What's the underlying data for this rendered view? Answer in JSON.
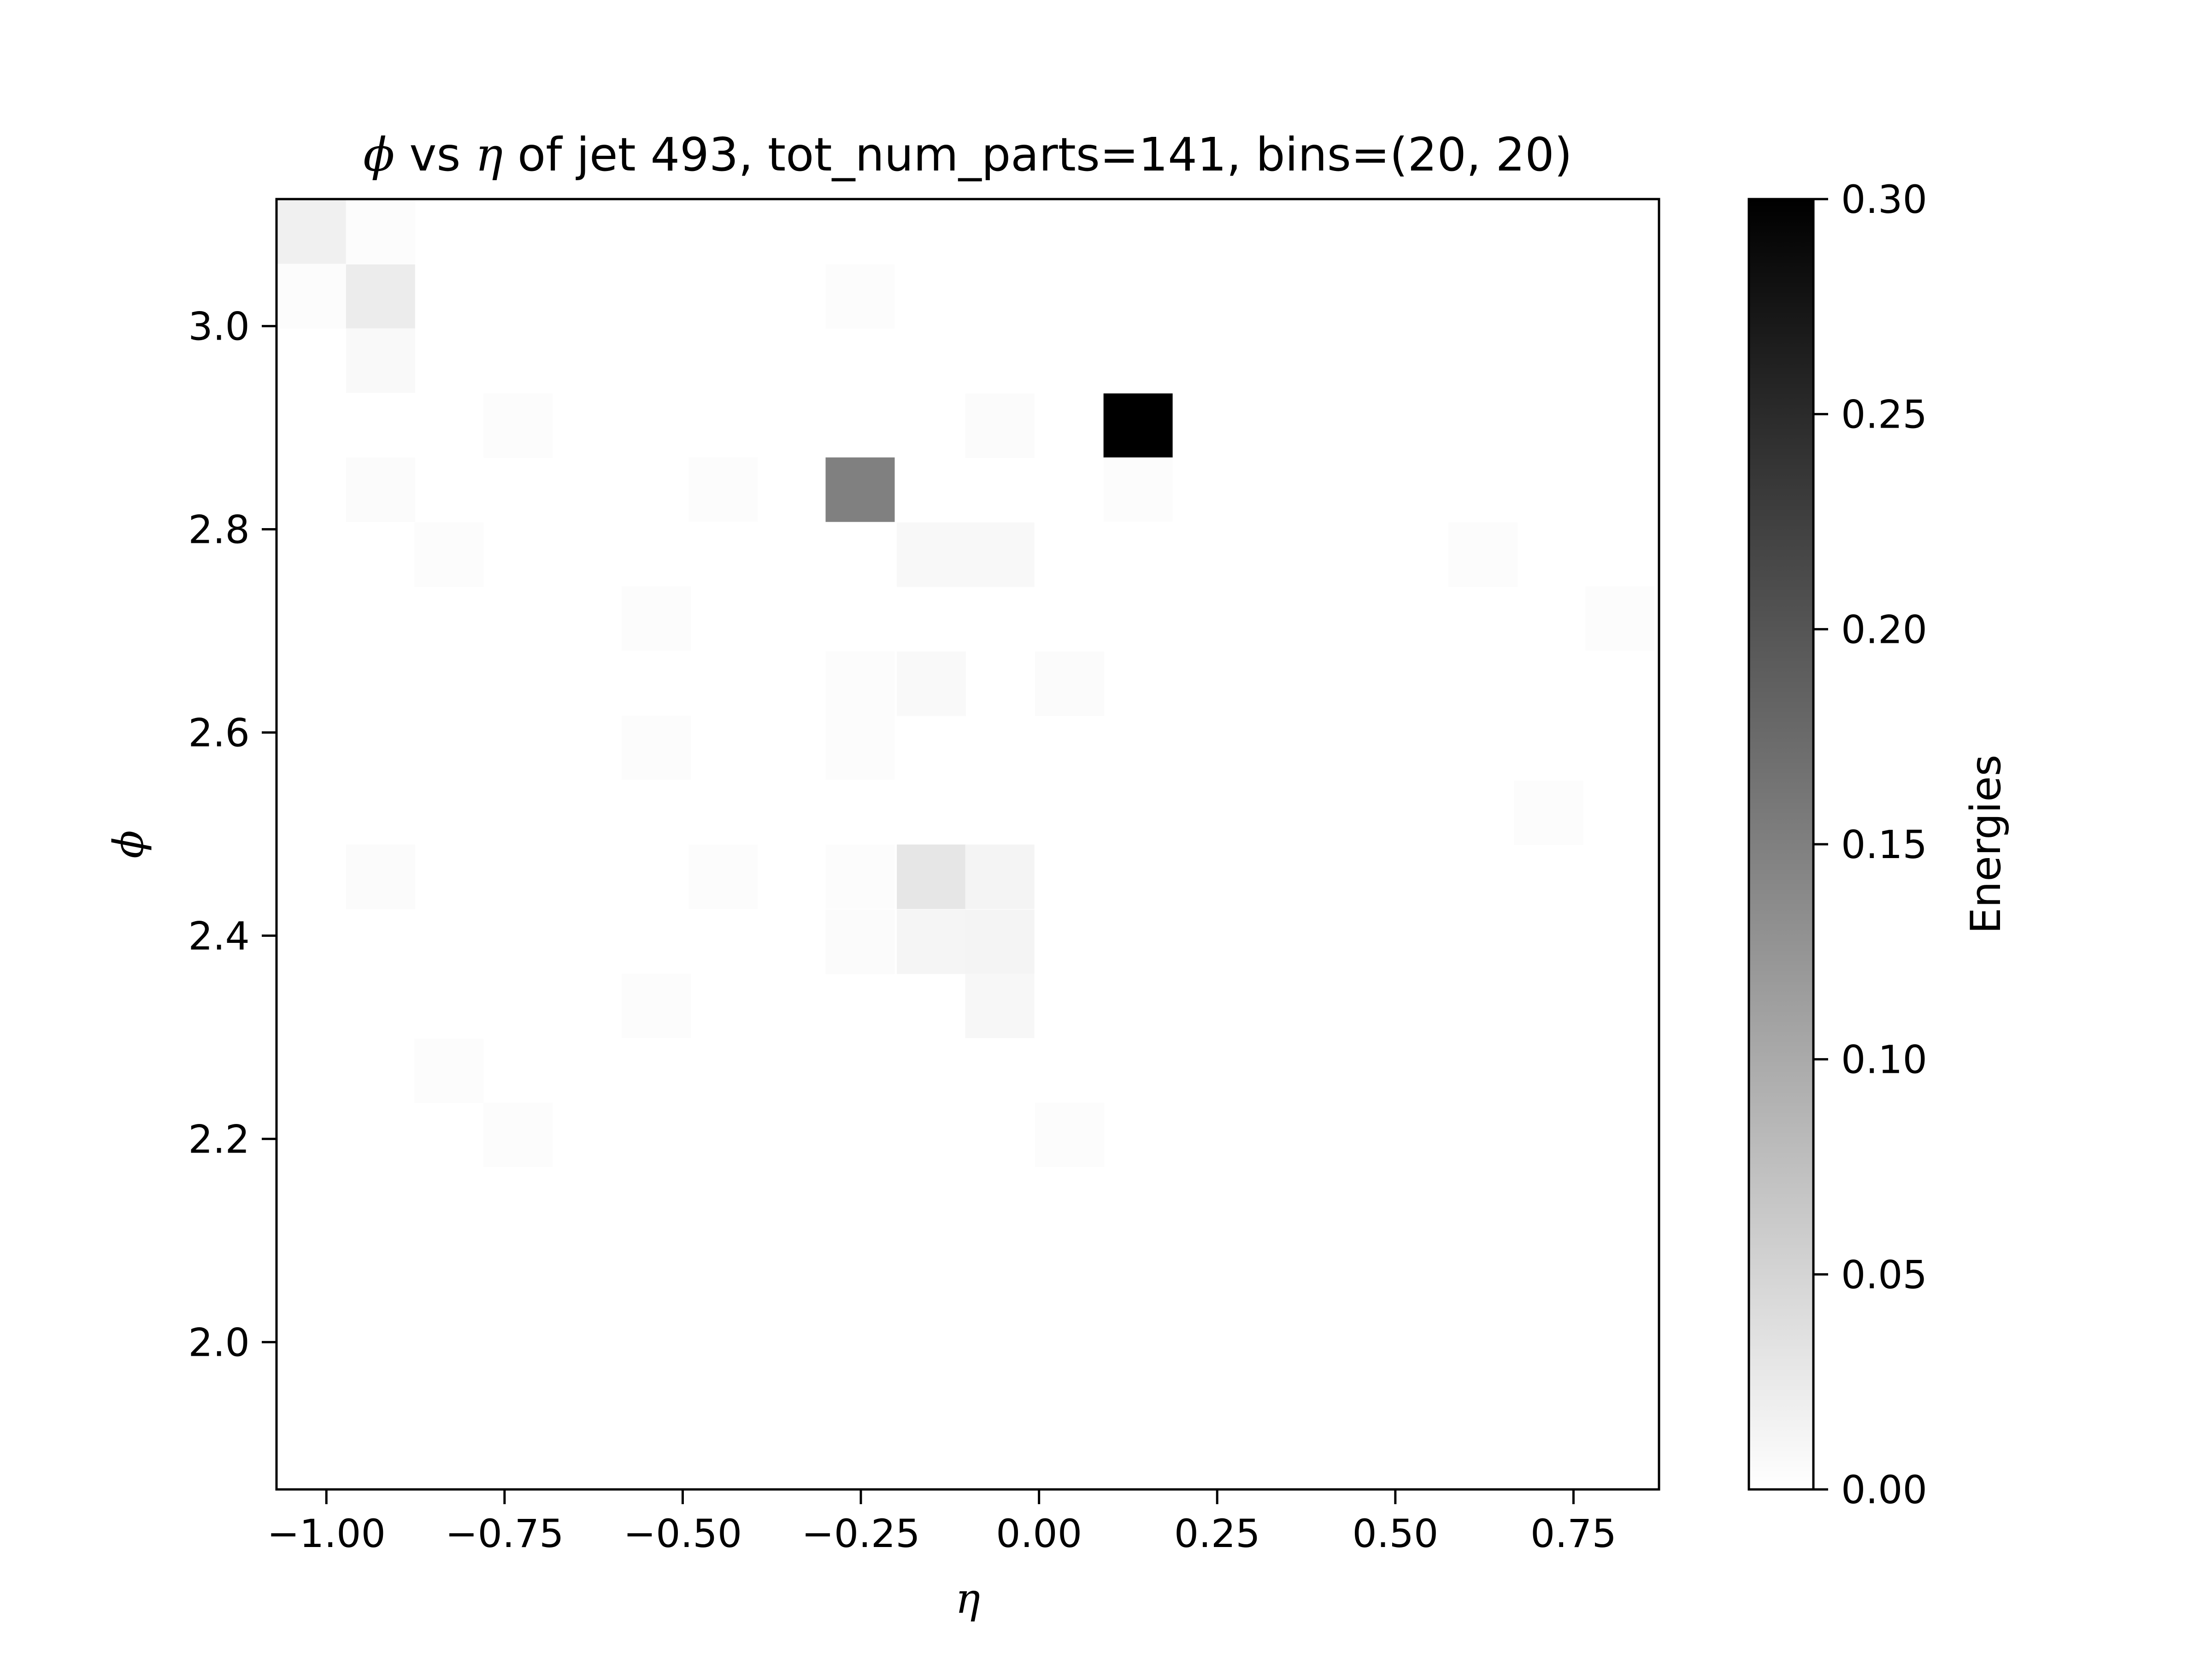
{
  "chart_data": {
    "type": "heatmap",
    "title": {
      "phi_symbol": "ϕ",
      "vs_text": " vs ",
      "eta_symbol": "η",
      "rest_text": " of jet 493, tot_num_parts=141, bins=(20, 20)"
    },
    "xlabel": "η",
    "ylabel": "ϕ",
    "colorbar_label": "Energies",
    "colormap": "Greys",
    "colors": {
      "low": "#ffffff",
      "high": "#000000"
    },
    "xlim": [
      -1.07,
      0.87
    ],
    "ylim": [
      1.855,
      3.125
    ],
    "clim": [
      0.0,
      0.3
    ],
    "bins": [
      20,
      20
    ],
    "bin_width_eta": 0.097,
    "bin_width_phi": 0.0635,
    "x_ticks": [
      -1.0,
      -0.75,
      -0.5,
      -0.25,
      0.0,
      0.25,
      0.5,
      0.75
    ],
    "x_tick_labels": [
      "−1.00",
      "−0.75",
      "−0.50",
      "−0.25",
      "0.00",
      "0.25",
      "0.50",
      "0.75"
    ],
    "y_ticks": [
      2.0,
      2.2,
      2.4,
      2.6,
      2.8,
      3.0
    ],
    "y_tick_labels": [
      "2.0",
      "2.2",
      "2.4",
      "2.6",
      "2.8",
      "3.0"
    ],
    "colorbar_ticks": [
      0.0,
      0.05,
      0.1,
      0.15,
      0.2,
      0.25,
      0.3
    ],
    "colorbar_tick_labels": [
      "0.00",
      "0.05",
      "0.10",
      "0.15",
      "0.20",
      "0.25",
      "0.30"
    ],
    "cells": [
      {
        "eta": -1.021,
        "phi": 3.093,
        "value": 0.018
      },
      {
        "eta": -0.924,
        "phi": 3.093,
        "value": 0.004
      },
      {
        "eta": -1.021,
        "phi": 3.029,
        "value": 0.003
      },
      {
        "eta": -0.924,
        "phi": 3.029,
        "value": 0.022
      },
      {
        "eta": -0.251,
        "phi": 3.029,
        "value": 0.003
      },
      {
        "eta": -0.924,
        "phi": 2.966,
        "value": 0.007
      },
      {
        "eta": -0.731,
        "phi": 2.902,
        "value": 0.003
      },
      {
        "eta": -0.055,
        "phi": 2.902,
        "value": 0.005
      },
      {
        "eta": 0.139,
        "phi": 2.902,
        "value": 0.3
      },
      {
        "eta": -0.924,
        "phi": 2.839,
        "value": 0.005
      },
      {
        "eta": -0.443,
        "phi": 2.839,
        "value": 0.004
      },
      {
        "eta": -0.251,
        "phi": 2.839,
        "value": 0.15
      },
      {
        "eta": 0.139,
        "phi": 2.839,
        "value": 0.004
      },
      {
        "eta": -0.828,
        "phi": 2.775,
        "value": 0.004
      },
      {
        "eta": -0.151,
        "phi": 2.775,
        "value": 0.008
      },
      {
        "eta": -0.055,
        "phi": 2.775,
        "value": 0.008
      },
      {
        "eta": 0.623,
        "phi": 2.775,
        "value": 0.003
      },
      {
        "eta": -0.537,
        "phi": 2.712,
        "value": 0.004
      },
      {
        "eta": 0.815,
        "phi": 2.712,
        "value": 0.003
      },
      {
        "eta": -0.251,
        "phi": 2.648,
        "value": 0.003
      },
      {
        "eta": -0.151,
        "phi": 2.648,
        "value": 0.007
      },
      {
        "eta": 0.043,
        "phi": 2.648,
        "value": 0.005
      },
      {
        "eta": -0.537,
        "phi": 2.585,
        "value": 0.003
      },
      {
        "eta": -0.251,
        "phi": 2.585,
        "value": 0.003
      },
      {
        "eta": 0.715,
        "phi": 2.521,
        "value": 0.003
      },
      {
        "eta": -0.924,
        "phi": 2.458,
        "value": 0.005
      },
      {
        "eta": -0.443,
        "phi": 2.458,
        "value": 0.004
      },
      {
        "eta": -0.251,
        "phi": 2.458,
        "value": 0.003
      },
      {
        "eta": -0.151,
        "phi": 2.458,
        "value": 0.03
      },
      {
        "eta": -0.055,
        "phi": 2.458,
        "value": 0.013
      },
      {
        "eta": -0.251,
        "phi": 2.394,
        "value": 0.005
      },
      {
        "eta": -0.151,
        "phi": 2.394,
        "value": 0.012
      },
      {
        "eta": -0.055,
        "phi": 2.394,
        "value": 0.013
      },
      {
        "eta": -0.537,
        "phi": 2.331,
        "value": 0.004
      },
      {
        "eta": -0.055,
        "phi": 2.331,
        "value": 0.01
      },
      {
        "eta": -0.828,
        "phi": 2.267,
        "value": 0.003
      },
      {
        "eta": -0.731,
        "phi": 2.204,
        "value": 0.004
      },
      {
        "eta": 0.043,
        "phi": 2.204,
        "value": 0.004
      }
    ]
  }
}
